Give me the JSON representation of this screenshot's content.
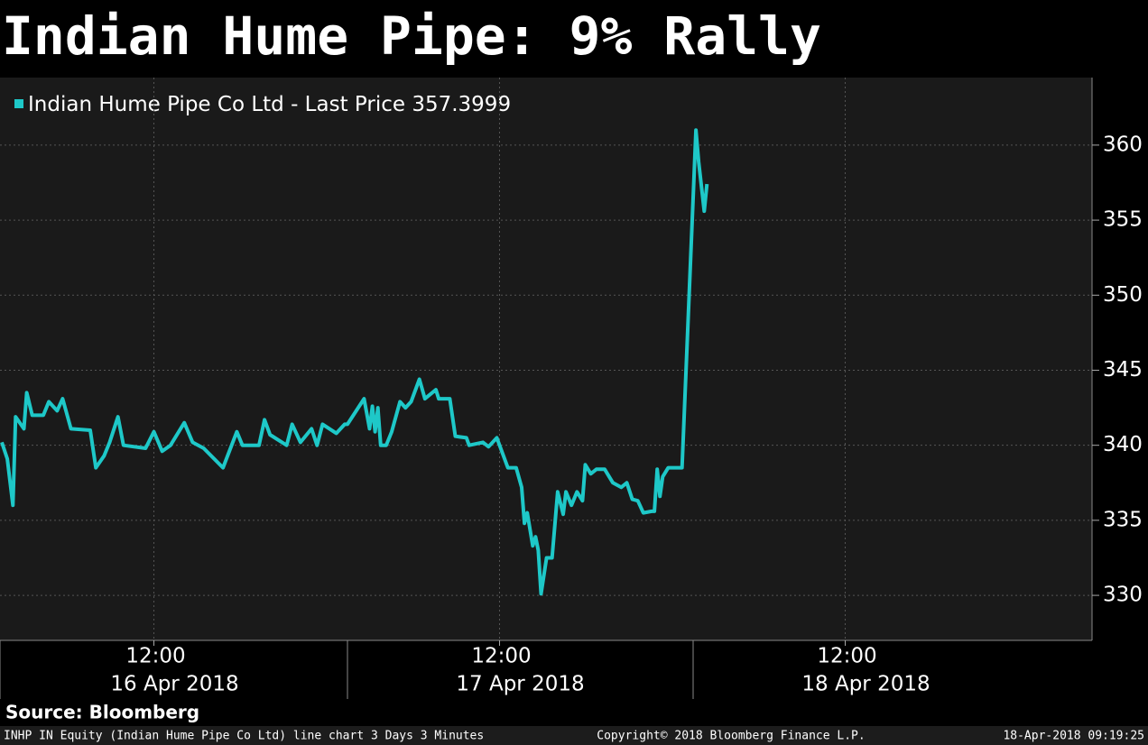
{
  "chart_data": {
    "type": "line",
    "title": "Indian Hume Pipe: 9% Rally",
    "series": [
      {
        "name": "Indian Hume Pipe Co Ltd - Last Price",
        "color": "#1ec8c8",
        "x": [
          "2018-04-16 09:15",
          "2018-04-16 09:21",
          "2018-04-16 09:27",
          "2018-04-16 09:30",
          "2018-04-16 09:39",
          "2018-04-16 09:42",
          "2018-04-16 09:48",
          "2018-04-16 10:00",
          "2018-04-16 10:06",
          "2018-04-16 10:15",
          "2018-04-16 10:21",
          "2018-04-16 10:30",
          "2018-04-16 10:51",
          "2018-04-16 10:57",
          "2018-04-16 11:06",
          "2018-04-16 11:12",
          "2018-04-16 11:21",
          "2018-04-16 11:27",
          "2018-04-16 11:51",
          "2018-04-16 12:00",
          "2018-04-16 12:09",
          "2018-04-16 12:18",
          "2018-04-16 12:33",
          "2018-04-16 12:42",
          "2018-04-16 12:54",
          "2018-04-16 13:15",
          "2018-04-16 13:30",
          "2018-04-16 13:36",
          "2018-04-16 13:54",
          "2018-04-16 14:00",
          "2018-04-16 14:06",
          "2018-04-16 14:24",
          "2018-04-16 14:30",
          "2018-04-16 14:39",
          "2018-04-16 14:51",
          "2018-04-16 14:57",
          "2018-04-16 15:03",
          "2018-04-16 15:18",
          "2018-04-16 15:27",
          "2018-04-17 09:15",
          "2018-04-17 09:33",
          "2018-04-17 09:39",
          "2018-04-17 09:42",
          "2018-04-17 09:45",
          "2018-04-17 09:48",
          "2018-04-17 09:51",
          "2018-04-17 09:57",
          "2018-04-17 10:03",
          "2018-04-17 10:12",
          "2018-04-17 10:18",
          "2018-04-17 10:24",
          "2018-04-17 10:33",
          "2018-04-17 10:39",
          "2018-04-17 10:51",
          "2018-04-17 10:54",
          "2018-04-17 11:06",
          "2018-04-17 11:12",
          "2018-04-17 11:24",
          "2018-04-17 11:27",
          "2018-04-17 11:42",
          "2018-04-17 11:48",
          "2018-04-17 11:57",
          "2018-04-17 12:09",
          "2018-04-17 12:18",
          "2018-04-17 12:24",
          "2018-04-17 12:27",
          "2018-04-17 12:30",
          "2018-04-17 12:36",
          "2018-04-17 12:39",
          "2018-04-17 12:42",
          "2018-04-17 12:45",
          "2018-04-17 12:51",
          "2018-04-17 12:57",
          "2018-04-17 13:03",
          "2018-04-17 13:09",
          "2018-04-17 13:12",
          "2018-04-17 13:18",
          "2018-04-17 13:24",
          "2018-04-17 13:30",
          "2018-04-17 13:33",
          "2018-04-17 13:39",
          "2018-04-17 13:45",
          "2018-04-17 13:54",
          "2018-04-17 14:03",
          "2018-04-17 14:12",
          "2018-04-17 14:18",
          "2018-04-17 14:24",
          "2018-04-17 14:30",
          "2018-04-17 14:36",
          "2018-04-17 14:45",
          "2018-04-17 14:48",
          "2018-04-17 14:51",
          "2018-04-17 14:54",
          "2018-04-17 14:57",
          "2018-04-17 15:03",
          "2018-04-17 15:18",
          "2018-04-18 09:18",
          "2018-04-18 09:21",
          "2018-04-18 09:27",
          "2018-04-18 09:30"
        ],
        "values": [
          340.2,
          339.1,
          336.0,
          341.9,
          341.1,
          343.5,
          342.0,
          342.0,
          342.9,
          342.3,
          343.1,
          341.1,
          341.0,
          338.5,
          339.3,
          340.2,
          341.9,
          340.0,
          339.8,
          340.9,
          339.6,
          340.0,
          341.5,
          340.2,
          339.8,
          338.5,
          340.9,
          340.0,
          340.0,
          341.7,
          340.7,
          340.0,
          341.4,
          340.2,
          341.1,
          340.0,
          341.4,
          340.8,
          341.4,
          341.4,
          343.1,
          341.1,
          342.6,
          340.9,
          342.5,
          340.0,
          340.0,
          340.9,
          342.9,
          342.5,
          342.9,
          344.4,
          343.1,
          343.7,
          343.1,
          343.1,
          340.6,
          340.5,
          340.0,
          340.2,
          339.9,
          340.5,
          338.5,
          338.5,
          337.2,
          334.8,
          335.5,
          333.3,
          333.9,
          333.0,
          330.1,
          332.5,
          332.5,
          336.9,
          335.4,
          336.9,
          336.0,
          336.9,
          336.3,
          338.7,
          338.1,
          338.4,
          338.4,
          337.5,
          337.2,
          337.5,
          336.4,
          336.3,
          335.5,
          335.6,
          335.6,
          338.4,
          336.6,
          337.9,
          338.5,
          338.5,
          361.0,
          358.9,
          355.6,
          357.3999
        ]
      }
    ],
    "last_price": 357.3999,
    "ylim": [
      327.0,
      364.5
    ],
    "yticks": [
      330,
      335,
      340,
      345,
      350,
      355,
      360
    ],
    "grid": true,
    "xticks": [
      {
        "value": "2018-04-16 12:00",
        "label": "12:00"
      },
      {
        "value": "2018-04-17 12:00",
        "label": "12:00"
      },
      {
        "value": "2018-04-18 12:00",
        "label": "12:00"
      }
    ],
    "date_labels": [
      "16 Apr 2018",
      "17 Apr 2018",
      "18 Apr 2018"
    ],
    "source": "Source: Bloomberg",
    "footer": {
      "left": "INHP IN Equity (Indian Hume Pipe Co Ltd) line chart 3 Days 3 Minutes",
      "center": "Copyright© 2018 Bloomberg Finance L.P.",
      "right": "18-Apr-2018 09:19:25"
    }
  }
}
